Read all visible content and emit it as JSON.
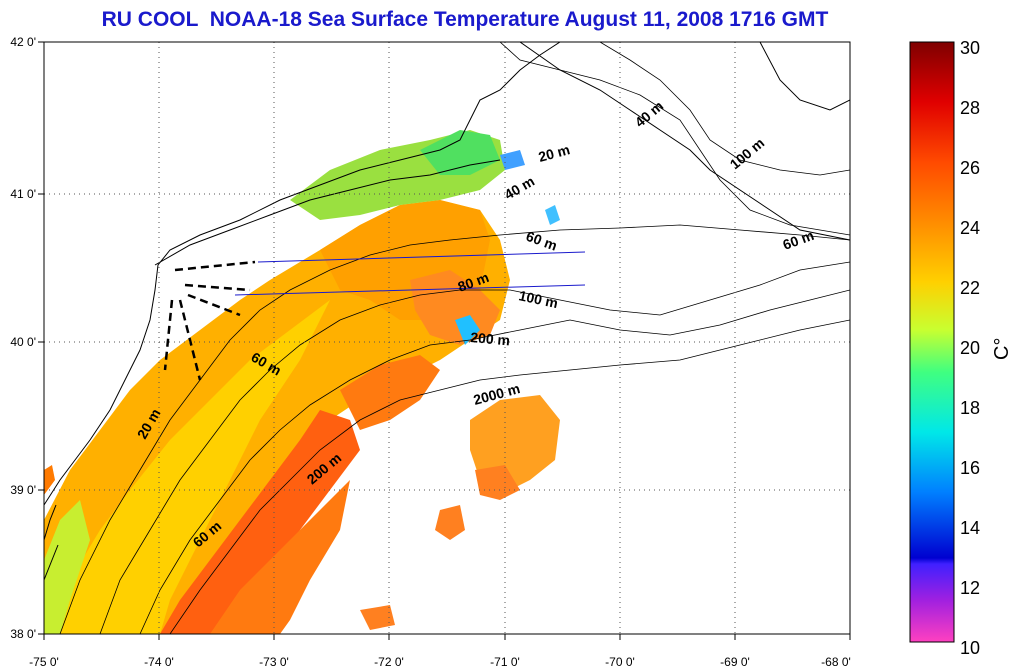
{
  "title": "RU COOL  NOAA-18 Sea Surface Temperature August 11, 2008 1716 GMT",
  "axes": {
    "lon_ticks": [
      "-75 0'",
      "-74 0'",
      "-73 0'",
      "-72 0'",
      "-71 0'",
      "-70 0'",
      "-69 0'",
      "-68 0'"
    ],
    "lat_ticks": [
      "42 0'",
      "41 0'",
      "40 0'",
      "39 0'",
      "38 0'"
    ]
  },
  "colorbar": {
    "unit": "C°",
    "ticks": [
      "30",
      "28",
      "26",
      "24",
      "22",
      "20",
      "18",
      "16",
      "14",
      "12",
      "10"
    ],
    "min": 10,
    "max": 30
  },
  "depth_labels": [
    {
      "text": "40 m"
    },
    {
      "text": "100 m"
    },
    {
      "text": "20 m"
    },
    {
      "text": "40 m"
    },
    {
      "text": "60 m"
    },
    {
      "text": "60 m"
    },
    {
      "text": "80 m"
    },
    {
      "text": "100 m"
    },
    {
      "text": "200 m"
    },
    {
      "text": "60 m"
    },
    {
      "text": "2000 m"
    },
    {
      "text": "20 m"
    },
    {
      "text": "200 m"
    },
    {
      "text": "60 m"
    }
  ],
  "colors": {
    "title": "#1a1acc",
    "grid": "#555555"
  }
}
